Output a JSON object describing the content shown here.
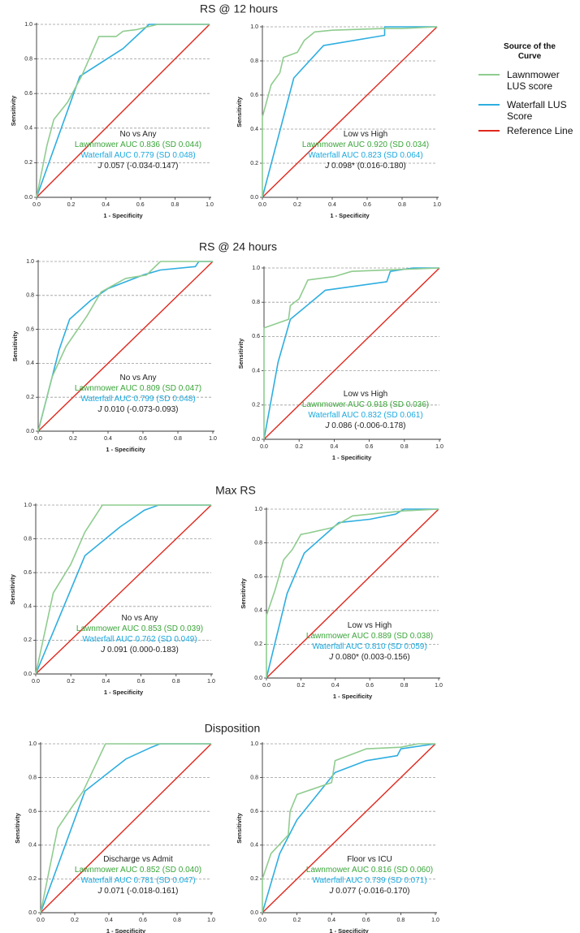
{
  "colors": {
    "lawnmower": "#8fcc8f",
    "waterfall": "#2eaee0",
    "reference": "#e0281e",
    "lawnmower_text": "#3aa53a",
    "waterfall_text": "#1ba9df",
    "text": "#222222",
    "grid": "#9a9a9a"
  },
  "legend": {
    "title_lines": [
      "Source of the",
      "Curve"
    ],
    "items": [
      {
        "key": "lawnmower",
        "lines": [
          "Lawnmower",
          "LUS score"
        ]
      },
      {
        "key": "waterfall",
        "lines": [
          "Waterfall LUS",
          "Score"
        ]
      },
      {
        "key": "reference",
        "lines": [
          "Reference Line"
        ]
      }
    ]
  },
  "rows": [
    {
      "title": "RS @ 12 hours"
    },
    {
      "title": "RS @ 24 hours"
    },
    {
      "title": "Max RS"
    },
    {
      "title": "Disposition"
    }
  ],
  "chart_data": [
    {
      "id": "rs12-no-vs-any",
      "type": "line",
      "row": 0,
      "col": 0,
      "xlabel": "1 - Specificity",
      "ylabel": "Sensitivity",
      "xlim": [
        0,
        1
      ],
      "ylim": [
        0,
        1
      ],
      "xticks": [
        "0.0",
        "0.2",
        "0.4",
        "0.6",
        "0.8",
        "1.0"
      ],
      "yticks": [
        "0.0",
        "0.2",
        "0.4",
        "0.6",
        "0.8",
        "1.0"
      ],
      "annotation": {
        "comparison": "No vs Any",
        "lawnmower": "Lawnmower AUC 0.836 (SD 0.044)",
        "waterfall": "Waterfall AUC 0.779 (SD 0.048)",
        "j": "0.057 (-0.034-0.147)"
      },
      "series": [
        {
          "name": "Lawnmower LUS score",
          "key": "lawnmower",
          "x": [
            0,
            0.06,
            0.1,
            0.18,
            0.26,
            0.36,
            0.46,
            0.5,
            0.58,
            0.7,
            1.0
          ],
          "y": [
            0,
            0.3,
            0.45,
            0.55,
            0.7,
            0.93,
            0.93,
            0.96,
            0.97,
            1.0,
            1.0
          ]
        },
        {
          "name": "Waterfall LUS Score",
          "key": "waterfall",
          "x": [
            0,
            0.25,
            0.5,
            0.65,
            0.7,
            1.0
          ],
          "y": [
            0,
            0.7,
            0.86,
            1.0,
            1.0,
            1.0
          ]
        },
        {
          "name": "Reference Line",
          "key": "reference",
          "x": [
            0,
            1
          ],
          "y": [
            0,
            1
          ]
        }
      ]
    },
    {
      "id": "rs12-low-vs-high",
      "type": "line",
      "row": 0,
      "col": 1,
      "xlabel": "1 - Specificity",
      "ylabel": "Sensitivity",
      "xlim": [
        0,
        1
      ],
      "ylim": [
        0,
        1
      ],
      "xticks": [
        "0.0",
        "0.2",
        "0.4",
        "0.6",
        "0.8",
        "1.0"
      ],
      "yticks": [
        "0.0",
        "0.2",
        "0.4",
        "0.6",
        "0.8",
        "1.0"
      ],
      "annotation": {
        "comparison": "Low vs High",
        "lawnmower": "Lawnmower AUC 0.920 (SD 0.034)",
        "waterfall": "Waterfall AUC 0.823 (SD 0.064)",
        "j": "0.098* (0.016-0.180)"
      },
      "series": [
        {
          "name": "Lawnmower LUS score",
          "key": "lawnmower",
          "x": [
            0,
            0.0,
            0.05,
            0.1,
            0.12,
            0.2,
            0.24,
            0.3,
            0.4,
            0.7,
            0.8,
            1.0
          ],
          "y": [
            0,
            0.47,
            0.66,
            0.73,
            0.82,
            0.85,
            0.92,
            0.97,
            0.98,
            0.99,
            0.99,
            1.0
          ]
        },
        {
          "name": "Waterfall LUS Score",
          "key": "waterfall",
          "x": [
            0,
            0.18,
            0.35,
            0.7,
            0.7,
            1.0
          ],
          "y": [
            0,
            0.7,
            0.89,
            0.95,
            1.0,
            1.0
          ]
        },
        {
          "name": "Reference Line",
          "key": "reference",
          "x": [
            0,
            1
          ],
          "y": [
            0,
            1
          ]
        }
      ]
    },
    {
      "id": "rs24-no-vs-any",
      "type": "line",
      "row": 1,
      "col": 0,
      "xlabel": "1 - Specificity",
      "ylabel": "Sensitivity",
      "xlim": [
        0,
        1
      ],
      "ylim": [
        0,
        1
      ],
      "xticks": [
        "0.0",
        "0.2",
        "0.4",
        "0.6",
        "0.8",
        "1.0"
      ],
      "yticks": [
        "0.0",
        "0.2",
        "0.4",
        "0.6",
        "0.8",
        "1.0"
      ],
      "annotation": {
        "comparison": "No vs Any",
        "lawnmower": "Lawnmower AUC 0.809 (SD 0.047)",
        "waterfall": "Waterfall AUC 0.799 (SD 0.048)",
        "j": "0.010 (-0.073-0.093)"
      },
      "series": [
        {
          "name": "Lawnmower LUS score",
          "key": "lawnmower",
          "x": [
            0,
            0.08,
            0.16,
            0.28,
            0.36,
            0.5,
            0.62,
            0.7,
            1.0
          ],
          "y": [
            0,
            0.32,
            0.5,
            0.68,
            0.82,
            0.9,
            0.92,
            1.0,
            1.0
          ]
        },
        {
          "name": "Waterfall LUS Score",
          "key": "waterfall",
          "x": [
            0,
            0.12,
            0.18,
            0.3,
            0.4,
            0.6,
            0.7,
            0.9,
            0.92,
            1.0
          ],
          "y": [
            0,
            0.48,
            0.66,
            0.77,
            0.84,
            0.92,
            0.95,
            0.97,
            1.0,
            1.0
          ]
        },
        {
          "name": "Reference Line",
          "key": "reference",
          "x": [
            0,
            1
          ],
          "y": [
            0,
            1
          ]
        }
      ]
    },
    {
      "id": "rs24-low-vs-high",
      "type": "line",
      "row": 1,
      "col": 1,
      "xlabel": "1 - Specificity",
      "ylabel": "Sensitivity",
      "xlim": [
        0,
        1
      ],
      "ylim": [
        0,
        1
      ],
      "xticks": [
        "0.0",
        "0.2",
        "0.4",
        "0.6",
        "0.8",
        "1.0"
      ],
      "yticks": [
        "0.0",
        "0.2",
        "0.4",
        "0.6",
        "0.8",
        "1.0"
      ],
      "annotation": {
        "comparison": "Low vs High",
        "lawnmower": "Lawnmower AUC 0.918 (SD 0.036)",
        "waterfall": "Waterfall AUC 0.832 (SD 0.061)",
        "j": "0.086 (-0.006-0.178)"
      },
      "series": [
        {
          "name": "Lawnmower LUS score",
          "key": "lawnmower",
          "x": [
            0,
            0.0,
            0.14,
            0.15,
            0.2,
            0.25,
            0.4,
            0.5,
            0.75,
            1.0
          ],
          "y": [
            0,
            0.65,
            0.7,
            0.78,
            0.82,
            0.93,
            0.95,
            0.98,
            0.99,
            1.0
          ]
        },
        {
          "name": "Waterfall LUS Score",
          "key": "waterfall",
          "x": [
            0,
            0.08,
            0.15,
            0.35,
            0.7,
            0.72,
            0.85,
            1.0
          ],
          "y": [
            0,
            0.45,
            0.7,
            0.87,
            0.92,
            0.98,
            1.0,
            1.0
          ]
        },
        {
          "name": "Reference Line",
          "key": "reference",
          "x": [
            0,
            1
          ],
          "y": [
            0,
            1
          ]
        }
      ]
    },
    {
      "id": "maxrs-no-vs-any",
      "type": "line",
      "row": 2,
      "col": 0,
      "xlabel": "1 - Specificity",
      "ylabel": "Sensitivity",
      "xlim": [
        0,
        1
      ],
      "ylim": [
        0,
        1
      ],
      "xticks": [
        "0.0",
        "0.2",
        "0.4",
        "0.6",
        "0.8",
        "1.0"
      ],
      "yticks": [
        "0.0",
        "0.2",
        "0.4",
        "0.6",
        "0.8",
        "1.0"
      ],
      "annotation": {
        "comparison": "No vs Any",
        "lawnmower": "Lawnmower AUC 0.853 (SD 0.039)",
        "waterfall": "Waterfall AUC 0.762 (SD 0.049)",
        "j": "0.091 (0.000-0.183)"
      },
      "series": [
        {
          "name": "Lawnmower LUS score",
          "key": "lawnmower",
          "x": [
            0,
            0.1,
            0.2,
            0.28,
            0.38,
            1.0
          ],
          "y": [
            0,
            0.48,
            0.65,
            0.84,
            1.0,
            1.0
          ]
        },
        {
          "name": "Waterfall LUS Score",
          "key": "waterfall",
          "x": [
            0,
            0.28,
            0.48,
            0.62,
            0.7,
            1.0
          ],
          "y": [
            0,
            0.7,
            0.87,
            0.97,
            1.0,
            1.0
          ]
        },
        {
          "name": "Reference Line",
          "key": "reference",
          "x": [
            0,
            1
          ],
          "y": [
            0,
            1
          ]
        }
      ]
    },
    {
      "id": "maxrs-low-vs-high",
      "type": "line",
      "row": 2,
      "col": 1,
      "xlabel": "1 - Specificity",
      "ylabel": "Sensitivity",
      "xlim": [
        0,
        1
      ],
      "ylim": [
        0,
        1
      ],
      "xticks": [
        "0.0",
        "0.2",
        "0.4",
        "0.6",
        "0.8",
        "1.0"
      ],
      "yticks": [
        "0.0",
        "0.2",
        "0.4",
        "0.6",
        "0.8",
        "1.0"
      ],
      "annotation": {
        "comparison": "Low vs High",
        "lawnmower": "Lawnmower AUC 0.889 (SD 0.038)",
        "waterfall": "Waterfall AUC 0.810 (SD 0.059)",
        "j": "0.080* (0.003-0.156)"
      },
      "series": [
        {
          "name": "Lawnmower LUS score",
          "key": "lawnmower",
          "x": [
            0,
            0.0,
            0.05,
            0.1,
            0.15,
            0.2,
            0.25,
            0.38,
            0.5,
            0.8,
            1.0
          ],
          "y": [
            0,
            0.37,
            0.52,
            0.7,
            0.76,
            0.85,
            0.86,
            0.89,
            0.96,
            0.99,
            1.0
          ]
        },
        {
          "name": "Waterfall LUS Score",
          "key": "waterfall",
          "x": [
            0,
            0.12,
            0.22,
            0.42,
            0.6,
            0.75,
            0.8,
            1.0
          ],
          "y": [
            0,
            0.5,
            0.74,
            0.92,
            0.94,
            0.97,
            1.0,
            1.0
          ]
        },
        {
          "name": "Reference Line",
          "key": "reference",
          "x": [
            0,
            1
          ],
          "y": [
            0,
            1
          ]
        }
      ]
    },
    {
      "id": "disp-discharge-vs-admit",
      "type": "line",
      "row": 3,
      "col": 0,
      "xlabel": "1 - Specificity",
      "ylabel": "Sensitivity",
      "xlim": [
        0,
        1
      ],
      "ylim": [
        0,
        1
      ],
      "xticks": [
        "0.0",
        "0.2",
        "0.4",
        "0.6",
        "0.8",
        "1.0"
      ],
      "yticks": [
        "0.0",
        "0.2",
        "0.4",
        "0.6",
        "0.8",
        "1.0"
      ],
      "annotation": {
        "comparison": "Discharge vs Admit",
        "lawnmower": "Lawnmower AUC 0.852 (SD 0.040)",
        "waterfall": "Waterfall AUC 0.781 (SD 0.047)",
        "j": "0.071 (-0.018-0.161)"
      },
      "series": [
        {
          "name": "Lawnmower LUS score",
          "key": "lawnmower",
          "x": [
            0,
            0.1,
            0.18,
            0.25,
            0.38,
            1.0
          ],
          "y": [
            0,
            0.5,
            0.62,
            0.72,
            1.0,
            1.0
          ]
        },
        {
          "name": "Waterfall LUS Score",
          "key": "waterfall",
          "x": [
            0,
            0.26,
            0.5,
            0.65,
            0.7,
            1.0
          ],
          "y": [
            0,
            0.72,
            0.91,
            0.98,
            1.0,
            1.0
          ]
        },
        {
          "name": "Reference Line",
          "key": "reference",
          "x": [
            0,
            1
          ],
          "y": [
            0,
            1
          ]
        }
      ]
    },
    {
      "id": "disp-floor-vs-icu",
      "type": "line",
      "row": 3,
      "col": 1,
      "xlabel": "1 - Specificity",
      "ylabel": "Sensitivity",
      "xlim": [
        0,
        1
      ],
      "ylim": [
        0,
        1
      ],
      "xticks": [
        "0.0",
        "0.2",
        "0.4",
        "0.6",
        "0.8",
        "1.0"
      ],
      "yticks": [
        "0.0",
        "0.2",
        "0.4",
        "0.6",
        "0.8",
        "1.0"
      ],
      "annotation": {
        "comparison": "Floor vs ICU",
        "lawnmower": "Lawnmower AUC 0.816 (SD 0.060)",
        "waterfall": "Waterfall AUC 0.739 (SD 0.071)",
        "j": "0.077 (-0.016-0.170)"
      },
      "series": [
        {
          "name": "Lawnmower LUS score",
          "key": "lawnmower",
          "x": [
            0,
            0.0,
            0.05,
            0.15,
            0.16,
            0.2,
            0.4,
            0.42,
            0.6,
            0.8,
            0.9,
            1.0
          ],
          "y": [
            0,
            0.2,
            0.35,
            0.46,
            0.6,
            0.7,
            0.77,
            0.9,
            0.97,
            0.98,
            1.0,
            1.0
          ]
        },
        {
          "name": "Waterfall LUS Score",
          "key": "waterfall",
          "x": [
            0,
            0.1,
            0.2,
            0.42,
            0.6,
            0.78,
            0.8,
            1.0
          ],
          "y": [
            0,
            0.35,
            0.55,
            0.83,
            0.9,
            0.93,
            0.97,
            1.0
          ]
        },
        {
          "name": "Reference Line",
          "key": "reference",
          "x": [
            0,
            1
          ],
          "y": [
            0,
            1
          ]
        }
      ]
    }
  ]
}
